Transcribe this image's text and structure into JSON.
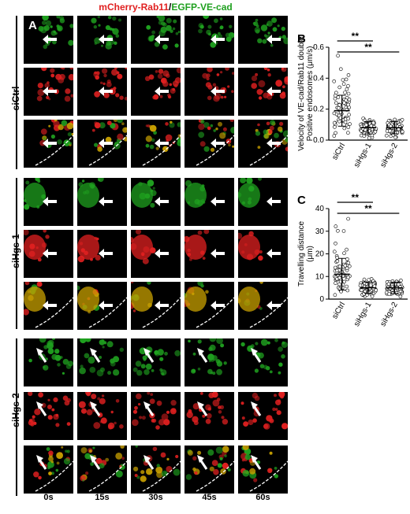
{
  "header": {
    "part1": "mCherry-Rab11",
    "sep": "/",
    "part2": "EGFP-VE-cad"
  },
  "panel_letter_a": "A",
  "groups": [
    {
      "label": "siCtrl"
    },
    {
      "label": "siHgs-1"
    },
    {
      "label": "siHgs-2"
    }
  ],
  "times": [
    "0s",
    "15s",
    "30s",
    "45s",
    "60s"
  ],
  "colors": {
    "green": "#1fa01f",
    "red": "#e02020",
    "merge": "#c8a000"
  },
  "chart_data": [
    {
      "type": "scatter",
      "letter": "B",
      "ylabel_lines": [
        "Velocity of VE-cad/Rab11 double",
        "Positive endosomes (μm/s)"
      ],
      "categories": [
        "siCtrl",
        "siHgs-1",
        "siHgs-2"
      ],
      "ylim": [
        0,
        0.6
      ],
      "yticks": [
        "0.0",
        "0.2",
        "0.4",
        "0.6"
      ],
      "means": [
        0.19,
        0.08,
        0.08
      ],
      "sd": [
        0.1,
        0.04,
        0.04
      ],
      "significance": [
        {
          "from": "siCtrl",
          "to": "siHgs-1",
          "label": "**"
        },
        {
          "from": "siCtrl",
          "to": "siHgs-2",
          "label": "**"
        }
      ]
    },
    {
      "type": "scatter",
      "letter": "C",
      "ylabel_lines": [
        "Travelling distance",
        "(μm)"
      ],
      "categories": [
        "siCtrl",
        "siHgs-1",
        "siHgs-2"
      ],
      "ylim": [
        0,
        40
      ],
      "yticks": [
        "0",
        "10",
        "20",
        "30",
        "40"
      ],
      "means": [
        11,
        5,
        5
      ],
      "sd": [
        7,
        2.5,
        2.5
      ],
      "significance": [
        {
          "from": "siCtrl",
          "to": "siHgs-1",
          "label": "**"
        },
        {
          "from": "siCtrl",
          "to": "siHgs-2",
          "label": "**"
        }
      ]
    }
  ]
}
